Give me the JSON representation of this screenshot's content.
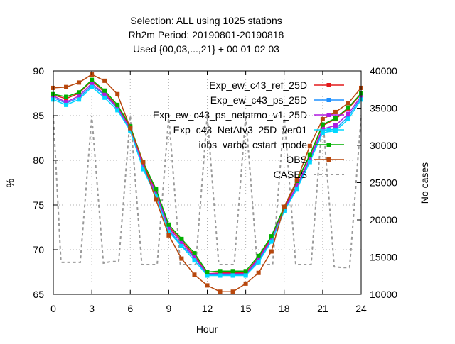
{
  "chart_data": {
    "type": "line",
    "title_lines": [
      "Selection: ALL using  1025 stations",
      "Rh2m   Period: 20190801-20190818",
      "Used {00,03,...,21} + 00 01 02 03"
    ],
    "xlabel": "Hour",
    "ylabel": "%",
    "y2label": "No cases",
    "xlim": [
      0,
      24
    ],
    "ylim": [
      65,
      90
    ],
    "y2lim": [
      10000,
      40000
    ],
    "x_ticks": [
      "0",
      "3",
      "6",
      "9",
      "12",
      "15",
      "18",
      "21",
      "24"
    ],
    "y_ticks": [
      "65",
      "70",
      "75",
      "80",
      "85",
      "90"
    ],
    "y2_ticks": [
      "10000",
      "15000",
      "20000",
      "25000",
      "30000",
      "35000",
      "40000"
    ],
    "grid": true,
    "legend_position": "top-right",
    "x": [
      0,
      1,
      2,
      3,
      4,
      5,
      6,
      7,
      8,
      9,
      10,
      11,
      12,
      13,
      14,
      15,
      16,
      17,
      18,
      19,
      20,
      21,
      22,
      23,
      24
    ],
    "series": [
      {
        "name": "Exp_ew_c43_ref_25D",
        "color": "#e41a1c",
        "marker": "square",
        "axis": "y",
        "values": [
          87.3,
          86.9,
          87.5,
          88.9,
          87.6,
          86.0,
          83.7,
          79.6,
          76.6,
          72.6,
          71.0,
          69.4,
          67.3,
          67.4,
          67.4,
          67.4,
          69.1,
          71.3,
          74.6,
          77.6,
          80.5,
          83.9,
          84.6,
          85.8,
          87.4
        ]
      },
      {
        "name": "Exp_ew_c43_ps_25D",
        "color": "#1e90ff",
        "marker": "square",
        "axis": "y",
        "values": [
          87.0,
          86.4,
          87.0,
          88.4,
          87.3,
          85.8,
          83.4,
          79.2,
          76.1,
          72.2,
          70.5,
          69.1,
          67.2,
          67.2,
          67.2,
          67.2,
          68.8,
          71.0,
          74.4,
          77.0,
          80.0,
          83.3,
          83.5,
          84.9,
          87.0
        ]
      },
      {
        "name": "Exp_ew_c43_ps_netatmo_v1_25D",
        "color": "#b01ce0",
        "marker": "square",
        "axis": "y",
        "values": [
          87.2,
          86.5,
          87.2,
          88.6,
          87.4,
          85.9,
          83.5,
          79.4,
          76.4,
          72.4,
          70.8,
          69.2,
          67.3,
          67.3,
          67.3,
          67.3,
          69.0,
          71.1,
          74.5,
          77.2,
          80.2,
          83.5,
          83.9,
          85.2,
          87.2
        ]
      },
      {
        "name": "Exp_c43_NetAtv3_25D_ver01",
        "color": "#00d8ff",
        "marker": "square",
        "axis": "y",
        "values": [
          86.8,
          86.2,
          86.8,
          88.2,
          87.0,
          85.6,
          83.3,
          79.0,
          76.0,
          72.0,
          70.4,
          68.8,
          67.1,
          67.1,
          67.1,
          67.1,
          68.6,
          70.9,
          74.3,
          76.8,
          79.8,
          83.1,
          83.3,
          84.6,
          86.8
        ]
      },
      {
        "name": "iobs_varbc_cstart_mode",
        "color": "#00b000",
        "marker": "square",
        "axis": "y",
        "values": [
          87.4,
          87.1,
          87.6,
          89.0,
          87.8,
          86.2,
          83.8,
          79.8,
          76.8,
          72.8,
          71.2,
          69.6,
          67.5,
          67.6,
          67.6,
          67.6,
          69.3,
          71.5,
          74.8,
          77.7,
          80.6,
          84.0,
          84.7,
          85.9,
          87.5
        ]
      },
      {
        "name": "OBS",
        "color": "#b8470c",
        "marker": "square",
        "axis": "y",
        "values": [
          88.1,
          88.2,
          88.7,
          89.6,
          88.9,
          87.4,
          83.6,
          79.8,
          75.6,
          71.6,
          69.0,
          67.2,
          66.0,
          65.3,
          65.3,
          66.2,
          67.4,
          69.8,
          74.8,
          77.8,
          81.6,
          84.6,
          85.4,
          86.4,
          88.1
        ]
      },
      {
        "name": "CASES",
        "color": "#999999",
        "marker": "none",
        "dashed": true,
        "axis": "y2",
        "x": [
          0,
          0.6,
          1.5,
          2.1,
          3.0,
          3.9,
          4.5,
          5.1,
          6.0,
          6.9,
          7.5,
          8.1,
          9.0,
          9.9,
          10.5,
          11.1,
          12.0,
          12.9,
          13.5,
          14.1,
          15.0,
          15.9,
          16.5,
          17.1,
          18.0,
          18.9,
          19.5,
          20.1,
          21.0,
          21.9,
          22.5,
          23.1,
          24.0
        ],
        "values": [
          34000,
          14300,
          14300,
          14300,
          34000,
          14200,
          14400,
          14400,
          34000,
          14000,
          14000,
          14000,
          34000,
          14000,
          14000,
          14000,
          34000,
          14000,
          14000,
          14000,
          34000,
          14000,
          14000,
          14000,
          34000,
          14000,
          14000,
          14000,
          34000,
          13700,
          13600,
          13600,
          34000
        ]
      }
    ]
  }
}
